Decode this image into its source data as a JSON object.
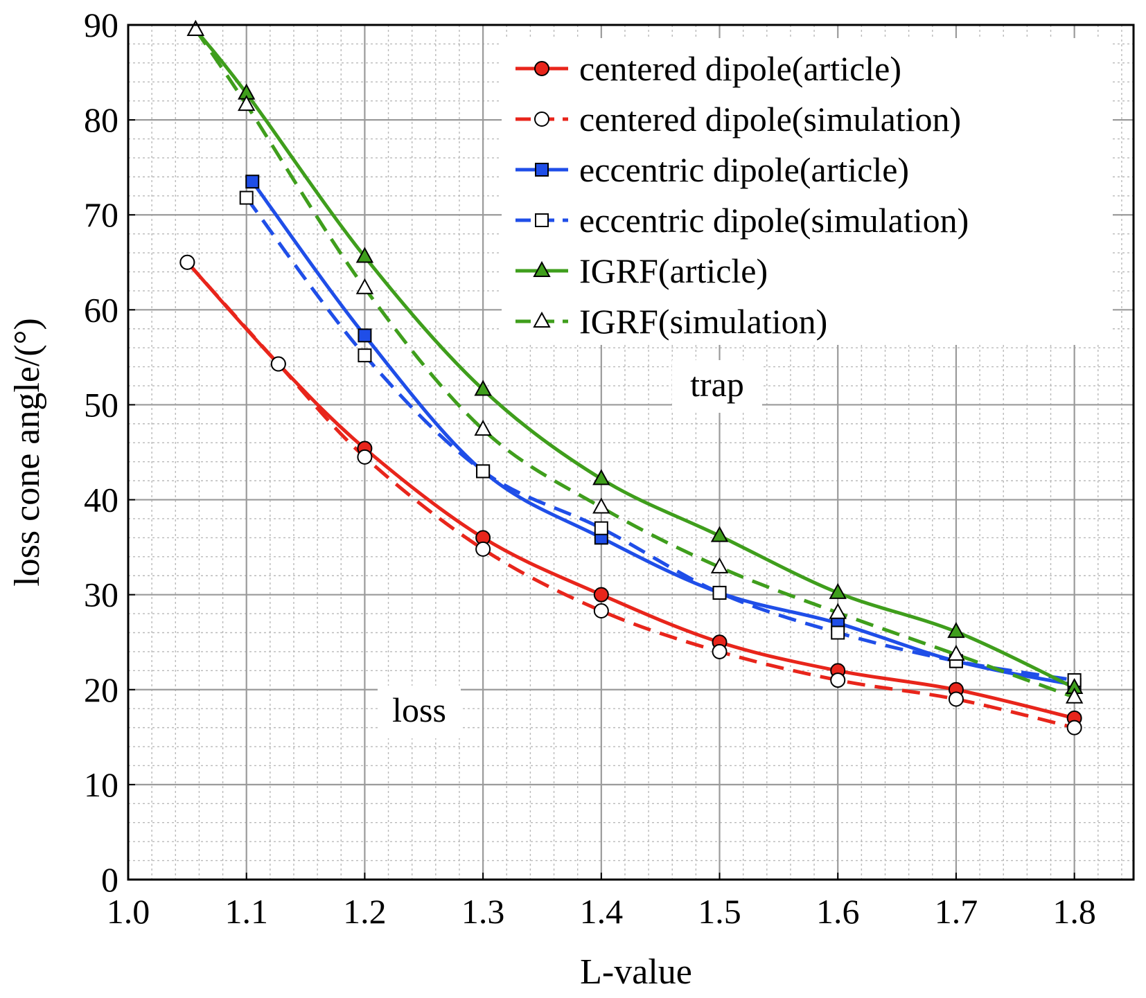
{
  "chart_data": {
    "type": "line",
    "xlabel": "L-value",
    "ylabel": "loss cone angle/(°)",
    "xlim": [
      1.0,
      1.85
    ],
    "ylim": [
      0,
      90
    ],
    "xticks": [
      "1.0",
      "1.1",
      "1.2",
      "1.3",
      "1.4",
      "1.5",
      "1.6",
      "1.7",
      "1.8"
    ],
    "yticks": [
      "0",
      "10",
      "20",
      "30",
      "40",
      "50",
      "60",
      "70",
      "80",
      "90"
    ],
    "grid": true,
    "legend_position": "top-right",
    "annotations": [
      {
        "text": "trap",
        "x": 1.49,
        "y": 52.5
      },
      {
        "text": "loss",
        "x": 1.22,
        "y": 17.8
      }
    ],
    "series": [
      {
        "name": "centered dipole(article)",
        "color": "#e8251b",
        "line_style": "solid",
        "marker": "circle-filled",
        "x": [
          1.05,
          1.127,
          1.2,
          1.3,
          1.4,
          1.5,
          1.6,
          1.7,
          1.8
        ],
        "y": [
          65.0,
          54.3,
          45.4,
          36.0,
          30.0,
          25.0,
          22.0,
          20.0,
          17.0
        ]
      },
      {
        "name": "centered dipole(simulation)",
        "color": "#e8251b",
        "line_style": "dashed",
        "marker": "circle-open",
        "x": [
          1.05,
          1.127,
          1.2,
          1.3,
          1.4,
          1.5,
          1.6,
          1.7,
          1.8
        ],
        "y": [
          65.0,
          54.3,
          44.5,
          34.8,
          28.3,
          24.0,
          21.0,
          19.0,
          16.0
        ]
      },
      {
        "name": "eccentric dipole(article)",
        "color": "#1f4ee8",
        "line_style": "solid",
        "marker": "square-filled",
        "x": [
          1.105,
          1.2,
          1.3,
          1.4,
          1.5,
          1.6,
          1.7,
          1.8
        ],
        "y": [
          73.5,
          57.3,
          43.0,
          36.0,
          30.2,
          27.0,
          23.0,
          20.5
        ]
      },
      {
        "name": "eccentric dipole(simulation)",
        "color": "#1f4ee8",
        "line_style": "dashed",
        "marker": "square-open",
        "x": [
          1.1,
          1.2,
          1.3,
          1.4,
          1.5,
          1.6,
          1.7,
          1.8
        ],
        "y": [
          71.8,
          55.2,
          43.0,
          37.0,
          30.2,
          26.0,
          23.0,
          21.0
        ]
      },
      {
        "name": "IGRF(article)",
        "color": "#3f9e1c",
        "line_style": "solid",
        "marker": "triangle-filled",
        "x": [
          1.057,
          1.1,
          1.2,
          1.3,
          1.4,
          1.5,
          1.6,
          1.7,
          1.8
        ],
        "y": [
          89.5,
          82.8,
          65.6,
          51.6,
          42.2,
          36.2,
          30.2,
          26.1,
          20.2
        ]
      },
      {
        "name": "IGRF(simulation)",
        "color": "#3f9e1c",
        "line_style": "dashed",
        "marker": "triangle-open",
        "x": [
          1.057,
          1.1,
          1.2,
          1.3,
          1.4,
          1.5,
          1.6,
          1.7,
          1.8
        ],
        "y": [
          89.5,
          81.6,
          62.3,
          47.4,
          39.2,
          32.9,
          28.1,
          23.7,
          19.2
        ]
      }
    ]
  }
}
